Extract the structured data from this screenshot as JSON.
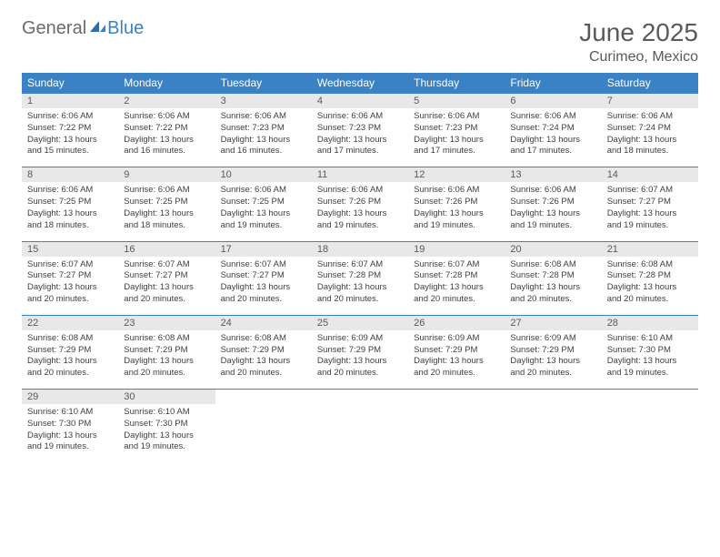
{
  "brand": {
    "part1": "General",
    "part2": "Blue"
  },
  "title": "June 2025",
  "location": "Curimeo, Mexico",
  "colors": {
    "header_bg": "#3b82c4",
    "header_text": "#ffffff",
    "daynum_bg": "#e8e8e8",
    "text": "#5a5a5a",
    "body_text": "#404040",
    "row_border": "#3b82c4"
  },
  "typography": {
    "title_fontsize": 28,
    "location_fontsize": 16,
    "header_fontsize": 12,
    "daynum_fontsize": 11,
    "body_fontsize": 9.5
  },
  "day_headers": [
    "Sunday",
    "Monday",
    "Tuesday",
    "Wednesday",
    "Thursday",
    "Friday",
    "Saturday"
  ],
  "weeks": [
    [
      {
        "n": "1",
        "sr": "6:06 AM",
        "ss": "7:22 PM",
        "dl": "13 hours and 15 minutes."
      },
      {
        "n": "2",
        "sr": "6:06 AM",
        "ss": "7:22 PM",
        "dl": "13 hours and 16 minutes."
      },
      {
        "n": "3",
        "sr": "6:06 AM",
        "ss": "7:23 PM",
        "dl": "13 hours and 16 minutes."
      },
      {
        "n": "4",
        "sr": "6:06 AM",
        "ss": "7:23 PM",
        "dl": "13 hours and 17 minutes."
      },
      {
        "n": "5",
        "sr": "6:06 AM",
        "ss": "7:23 PM",
        "dl": "13 hours and 17 minutes."
      },
      {
        "n": "6",
        "sr": "6:06 AM",
        "ss": "7:24 PM",
        "dl": "13 hours and 17 minutes."
      },
      {
        "n": "7",
        "sr": "6:06 AM",
        "ss": "7:24 PM",
        "dl": "13 hours and 18 minutes."
      }
    ],
    [
      {
        "n": "8",
        "sr": "6:06 AM",
        "ss": "7:25 PM",
        "dl": "13 hours and 18 minutes."
      },
      {
        "n": "9",
        "sr": "6:06 AM",
        "ss": "7:25 PM",
        "dl": "13 hours and 18 minutes."
      },
      {
        "n": "10",
        "sr": "6:06 AM",
        "ss": "7:25 PM",
        "dl": "13 hours and 19 minutes."
      },
      {
        "n": "11",
        "sr": "6:06 AM",
        "ss": "7:26 PM",
        "dl": "13 hours and 19 minutes."
      },
      {
        "n": "12",
        "sr": "6:06 AM",
        "ss": "7:26 PM",
        "dl": "13 hours and 19 minutes."
      },
      {
        "n": "13",
        "sr": "6:06 AM",
        "ss": "7:26 PM",
        "dl": "13 hours and 19 minutes."
      },
      {
        "n": "14",
        "sr": "6:07 AM",
        "ss": "7:27 PM",
        "dl": "13 hours and 19 minutes."
      }
    ],
    [
      {
        "n": "15",
        "sr": "6:07 AM",
        "ss": "7:27 PM",
        "dl": "13 hours and 20 minutes."
      },
      {
        "n": "16",
        "sr": "6:07 AM",
        "ss": "7:27 PM",
        "dl": "13 hours and 20 minutes."
      },
      {
        "n": "17",
        "sr": "6:07 AM",
        "ss": "7:27 PM",
        "dl": "13 hours and 20 minutes."
      },
      {
        "n": "18",
        "sr": "6:07 AM",
        "ss": "7:28 PM",
        "dl": "13 hours and 20 minutes."
      },
      {
        "n": "19",
        "sr": "6:07 AM",
        "ss": "7:28 PM",
        "dl": "13 hours and 20 minutes."
      },
      {
        "n": "20",
        "sr": "6:08 AM",
        "ss": "7:28 PM",
        "dl": "13 hours and 20 minutes."
      },
      {
        "n": "21",
        "sr": "6:08 AM",
        "ss": "7:28 PM",
        "dl": "13 hours and 20 minutes."
      }
    ],
    [
      {
        "n": "22",
        "sr": "6:08 AM",
        "ss": "7:29 PM",
        "dl": "13 hours and 20 minutes."
      },
      {
        "n": "23",
        "sr": "6:08 AM",
        "ss": "7:29 PM",
        "dl": "13 hours and 20 minutes."
      },
      {
        "n": "24",
        "sr": "6:08 AM",
        "ss": "7:29 PM",
        "dl": "13 hours and 20 minutes."
      },
      {
        "n": "25",
        "sr": "6:09 AM",
        "ss": "7:29 PM",
        "dl": "13 hours and 20 minutes."
      },
      {
        "n": "26",
        "sr": "6:09 AM",
        "ss": "7:29 PM",
        "dl": "13 hours and 20 minutes."
      },
      {
        "n": "27",
        "sr": "6:09 AM",
        "ss": "7:29 PM",
        "dl": "13 hours and 20 minutes."
      },
      {
        "n": "28",
        "sr": "6:10 AM",
        "ss": "7:30 PM",
        "dl": "13 hours and 19 minutes."
      }
    ],
    [
      {
        "n": "29",
        "sr": "6:10 AM",
        "ss": "7:30 PM",
        "dl": "13 hours and 19 minutes."
      },
      {
        "n": "30",
        "sr": "6:10 AM",
        "ss": "7:30 PM",
        "dl": "13 hours and 19 minutes."
      },
      null,
      null,
      null,
      null,
      null
    ]
  ],
  "labels": {
    "sunrise": "Sunrise:",
    "sunset": "Sunset:",
    "daylight": "Daylight:"
  }
}
